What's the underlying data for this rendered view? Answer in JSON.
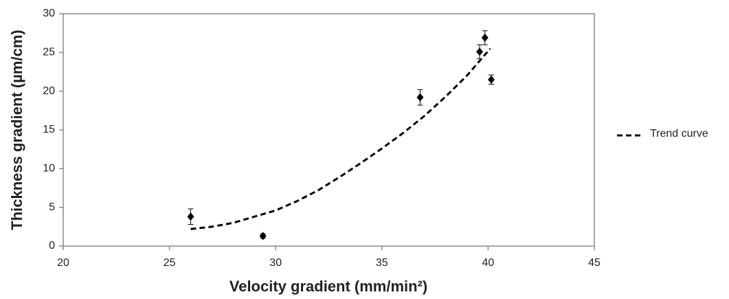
{
  "chart_data": {
    "type": "scatter",
    "xlabel": "Velocity gradient (mm/min²)",
    "ylabel": "Thickness gradient (µm/cm)",
    "xlim": [
      20,
      45
    ],
    "xticks": [
      20,
      25,
      30,
      35,
      40,
      45
    ],
    "ylim": [
      0,
      30
    ],
    "yticks": [
      0,
      5,
      10,
      15,
      20,
      25,
      30
    ],
    "series": [
      {
        "color": "#000000",
        "marker": "diamond",
        "x": [
          26.0,
          29.4,
          36.8,
          39.6,
          39.85,
          40.15
        ],
        "values": [
          3.8,
          1.3,
          19.2,
          25.1,
          26.9,
          21.5
        ],
        "errors": [
          1.0,
          0.3,
          1.0,
          0.9,
          0.9,
          0.6
        ]
      },
      {
        "name": "Trend curve",
        "color": "#000000",
        "line_style": "dashed",
        "x": [
          26,
          27,
          28,
          29,
          30,
          31,
          32,
          33,
          34,
          35,
          36,
          37,
          38,
          39,
          40.1
        ],
        "values": [
          2.2,
          2.5,
          3.0,
          3.8,
          4.6,
          5.8,
          7.2,
          8.9,
          10.7,
          12.6,
          14.6,
          16.8,
          19.3,
          22.0,
          25.5
        ]
      }
    ]
  }
}
